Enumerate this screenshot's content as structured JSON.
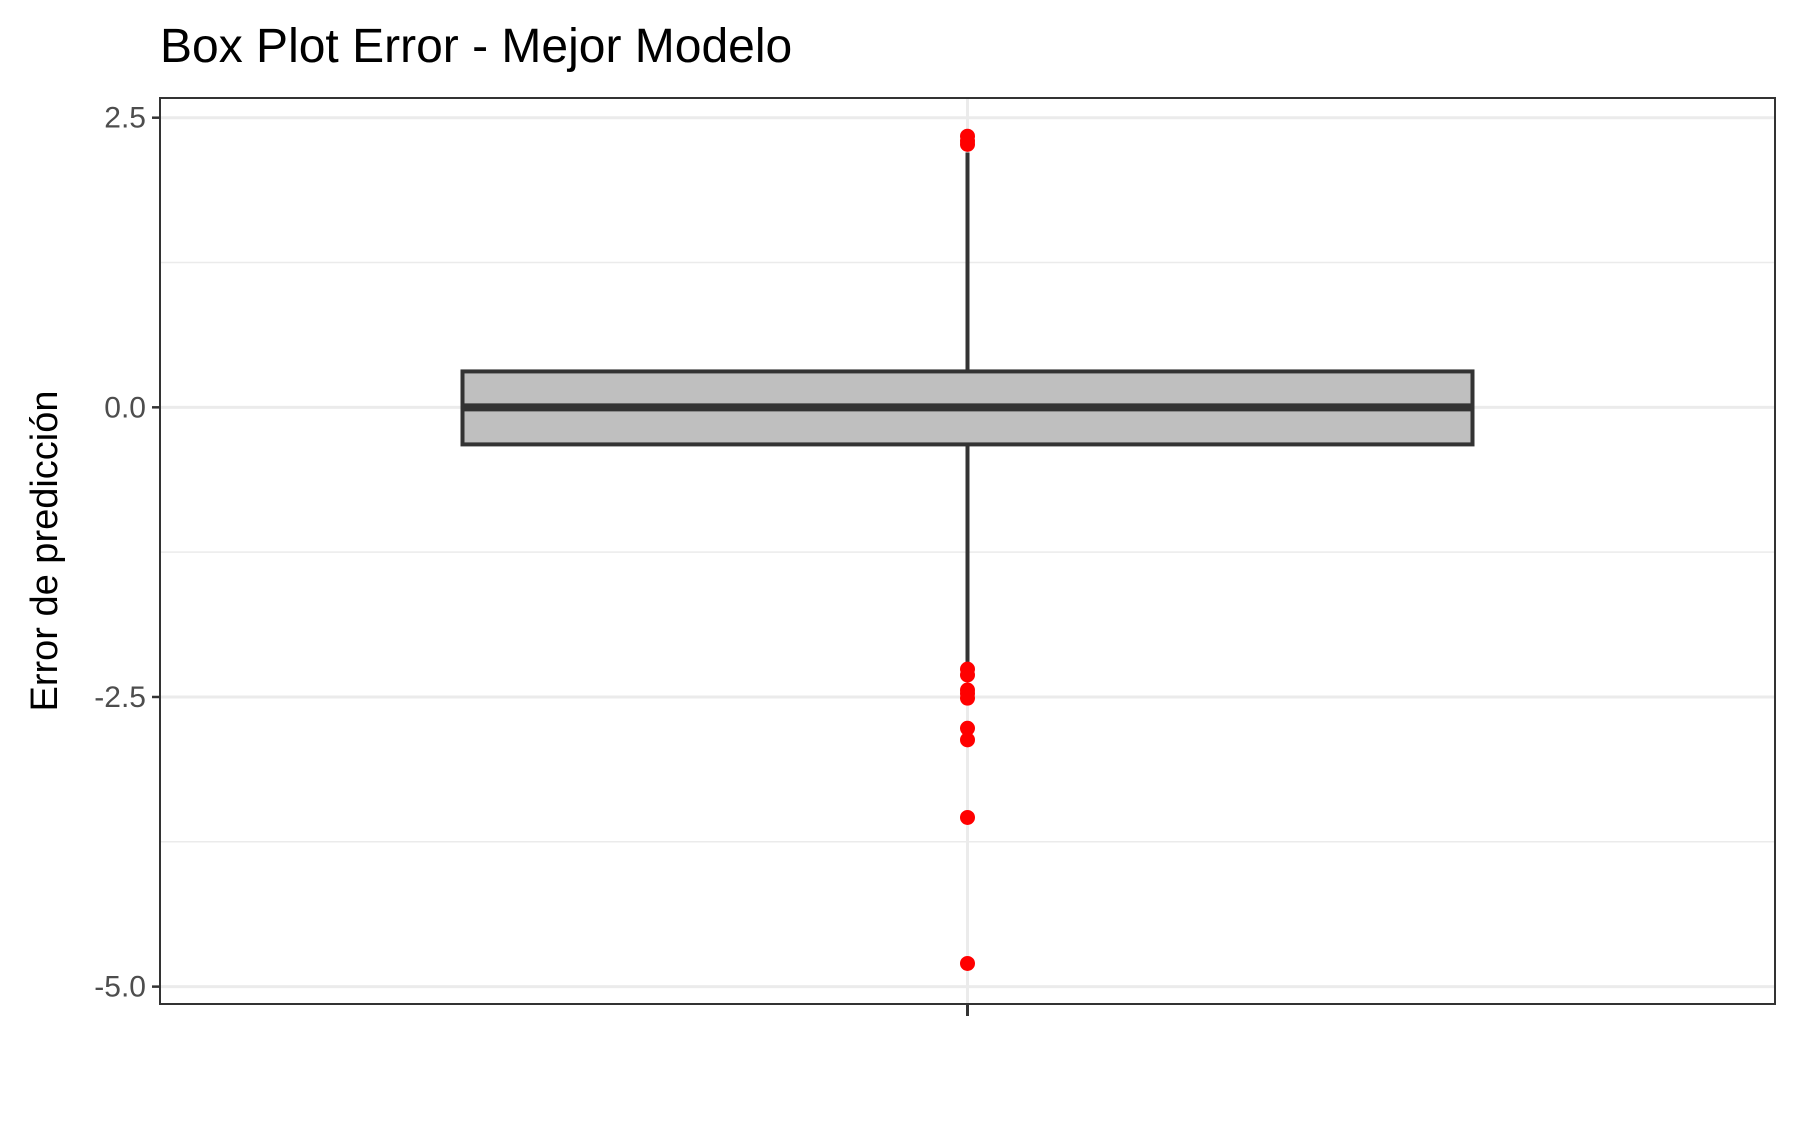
{
  "chart_data": {
    "type": "box",
    "title": "Box Plot Error - Mejor Modelo",
    "xlabel": "",
    "ylabel": "Error de predicción",
    "ylim": [
      -5.15,
      2.67
    ],
    "yticks": [
      2.5,
      0.0,
      -2.5,
      -5.0
    ],
    "ytick_labels": [
      "2.5",
      "0.0",
      "-2.5",
      "-5.0"
    ],
    "grid": true,
    "box": {
      "q1": -0.32,
      "median": 0.0,
      "q3": 0.31,
      "whisker_low": -2.2,
      "whisker_high": 2.2,
      "fill": "#bfbfbf",
      "line_color": "#333333"
    },
    "outliers": [
      2.34,
      2.3,
      2.27,
      -2.26,
      -2.31,
      -2.44,
      -2.47,
      -2.51,
      -2.77,
      -2.87,
      -3.54,
      -4.8
    ],
    "outlier_color": "#ff0000",
    "grid_color": "#ebebeb",
    "panel_border_color": "#333333"
  }
}
